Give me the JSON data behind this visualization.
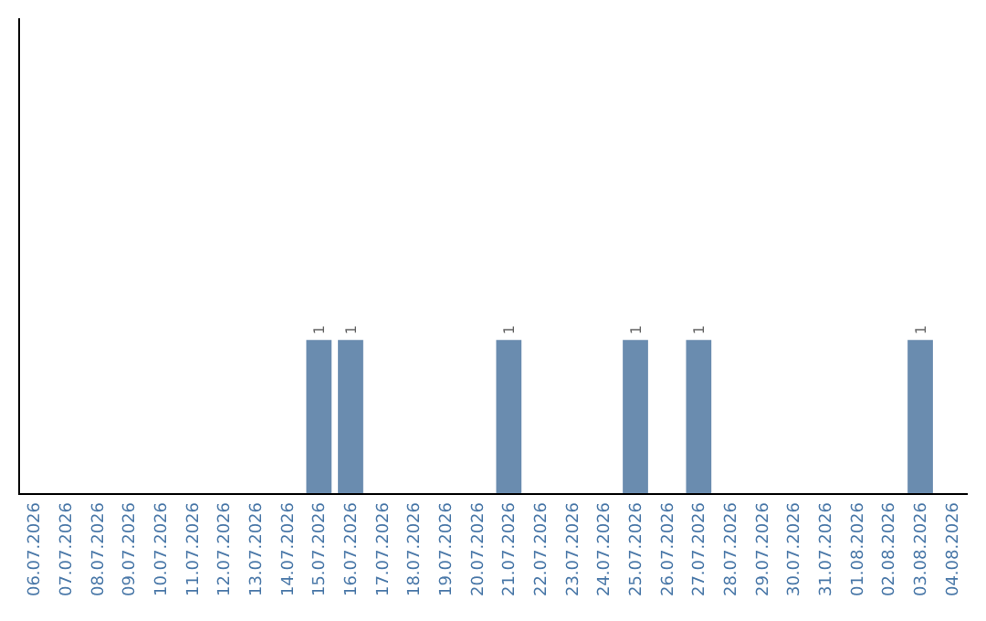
{
  "chart_data": {
    "type": "bar",
    "categories": [
      "06.07.2026",
      "07.07.2026",
      "08.07.2026",
      "09.07.2026",
      "10.07.2026",
      "11.07.2026",
      "12.07.2026",
      "13.07.2026",
      "14.07.2026",
      "15.07.2026",
      "16.07.2026",
      "17.07.2026",
      "18.07.2026",
      "19.07.2026",
      "20.07.2026",
      "21.07.2026",
      "22.07.2026",
      "23.07.2026",
      "24.07.2026",
      "25.07.2026",
      "26.07.2026",
      "27.07.2026",
      "28.07.2026",
      "29.07.2026",
      "30.07.2026",
      "31.07.2026",
      "01.08.2026",
      "02.08.2026",
      "03.08.2026",
      "04.08.2026"
    ],
    "values": [
      0,
      0,
      0,
      0,
      0,
      0,
      0,
      0,
      0,
      1,
      1,
      0,
      0,
      0,
      0,
      1,
      0,
      0,
      0,
      1,
      0,
      1,
      0,
      0,
      0,
      0,
      0,
      0,
      1,
      0
    ],
    "value_labels": [
      null,
      null,
      null,
      null,
      null,
      null,
      null,
      null,
      null,
      "1",
      "1",
      null,
      null,
      null,
      null,
      "1",
      null,
      null,
      null,
      "1",
      null,
      "1",
      null,
      null,
      null,
      null,
      null,
      null,
      "1",
      null
    ],
    "color": "#6a8caf",
    "ylim": [
      0,
      3.1
    ],
    "tick_labels": "x"
  }
}
